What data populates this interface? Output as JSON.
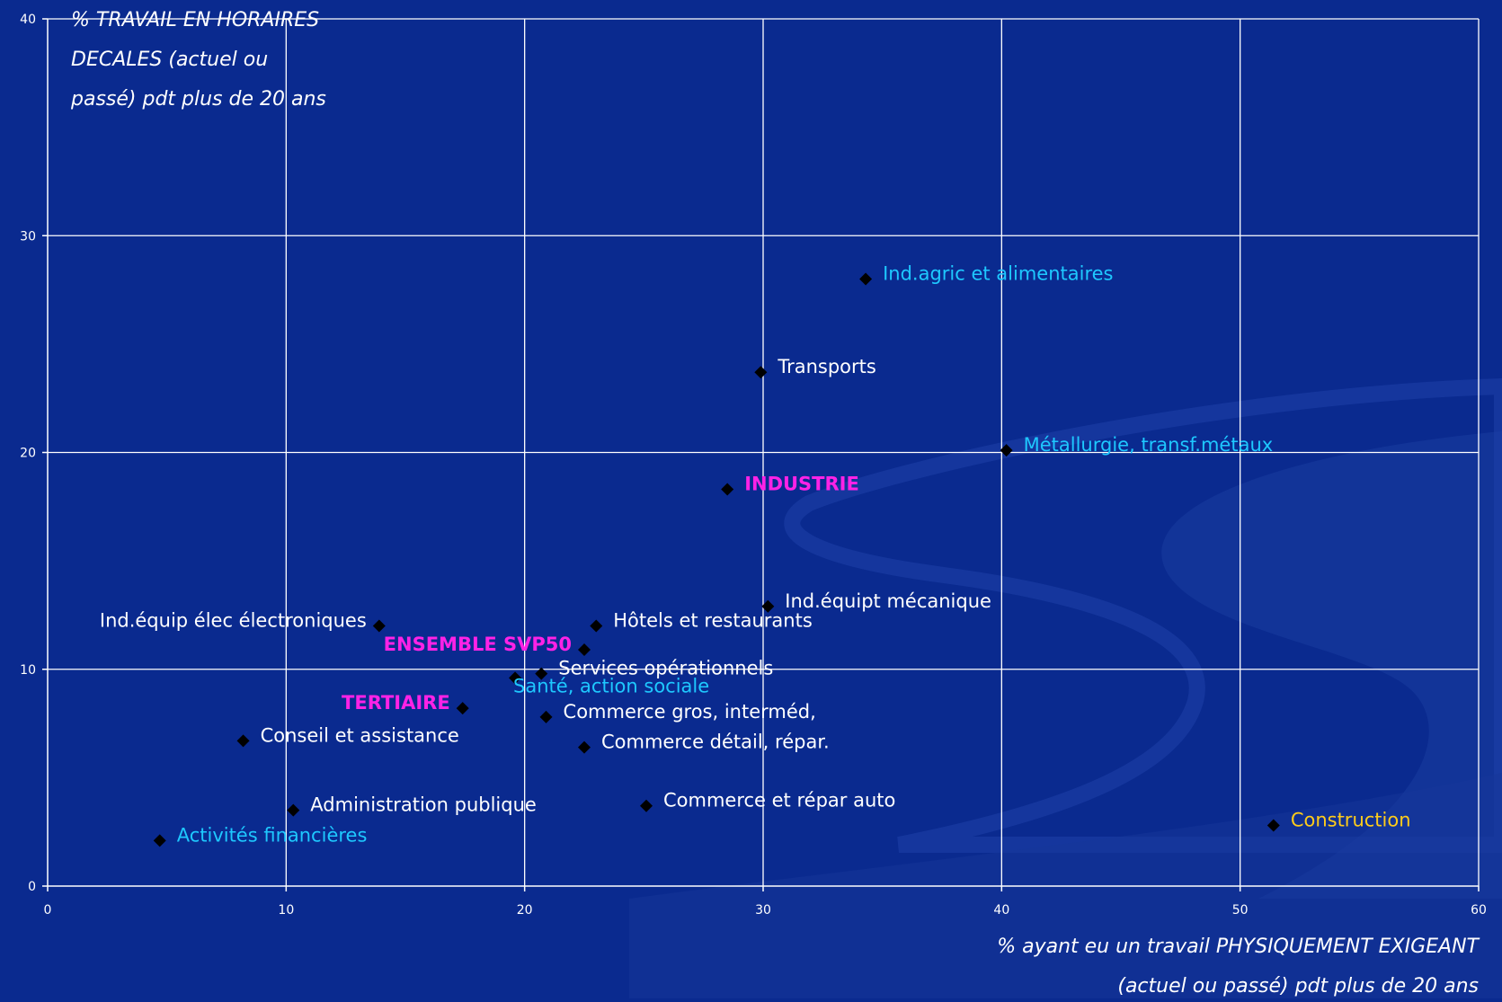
{
  "colors": {
    "background": "#0a2a8f",
    "grid": "#ffffff",
    "marker": "#000000",
    "label_white": "#ffffff",
    "label_cyan": "#1ec8ff",
    "label_magenta": "#ff22e6",
    "label_gold": "#ffcc1a"
  },
  "chart_data": {
    "type": "scatter",
    "title": "",
    "ylabel_lines": [
      "% TRAVAIL EN HORAIRES",
      "DECALES  (actuel ou",
      "passé) pdt plus de 20 ans"
    ],
    "xlabel_lines": [
      "%  ayant eu un travail PHYSIQUEMENT EXIGEANT",
      "(actuel ou passé) pdt plus de 20 ans"
    ],
    "xlim": [
      0,
      60
    ],
    "ylim": [
      0,
      40
    ],
    "xticks": [
      0,
      10,
      20,
      30,
      40,
      50,
      60
    ],
    "yticks": [
      0,
      10,
      20,
      30,
      40
    ],
    "grid": true,
    "marker": "diamond",
    "points": [
      {
        "label": "Ind.agric et alimentaires",
        "x": 34.3,
        "y": 28.0,
        "color": "cyan",
        "anchor": "right"
      },
      {
        "label": "Transports",
        "x": 29.9,
        "y": 23.7,
        "color": "white",
        "anchor": "right"
      },
      {
        "label": "Métallurgie, transf.métaux",
        "x": 40.2,
        "y": 20.1,
        "color": "cyan",
        "anchor": "right"
      },
      {
        "label": "INDUSTRIE",
        "x": 28.5,
        "y": 18.3,
        "color": "magenta",
        "anchor": "right"
      },
      {
        "label": "Ind.équipt mécanique",
        "x": 30.2,
        "y": 12.9,
        "color": "white",
        "anchor": "right"
      },
      {
        "label": "Ind.équip élec électroniques",
        "x": 13.9,
        "y": 12.0,
        "color": "white",
        "anchor": "left"
      },
      {
        "label": "Hôtels et restaurants",
        "x": 23.0,
        "y": 12.0,
        "color": "white",
        "anchor": "right"
      },
      {
        "label": "ENSEMBLE SVP50",
        "x": 22.5,
        "y": 10.9,
        "color": "magenta",
        "anchor": "left"
      },
      {
        "label": "Services opérationnels",
        "x": 20.7,
        "y": 9.8,
        "color": "white",
        "anchor": "right"
      },
      {
        "label": "Santé, action sociale",
        "x": 19.6,
        "y": 9.6,
        "color": "cyan",
        "anchor": "below"
      },
      {
        "label": "TERTIAIRE",
        "x": 17.4,
        "y": 8.2,
        "color": "magenta",
        "anchor": "left"
      },
      {
        "label": "Commerce gros, interméd,",
        "x": 20.9,
        "y": 7.8,
        "color": "white",
        "anchor": "right"
      },
      {
        "label": "Conseil et assistance",
        "x": 8.2,
        "y": 6.7,
        "color": "white",
        "anchor": "right"
      },
      {
        "label": "Commerce détail, répar.",
        "x": 22.5,
        "y": 6.4,
        "color": "white",
        "anchor": "right"
      },
      {
        "label": "Administration publique",
        "x": 10.3,
        "y": 3.5,
        "color": "white",
        "anchor": "right"
      },
      {
        "label": "Commerce et répar auto",
        "x": 25.1,
        "y": 3.7,
        "color": "white",
        "anchor": "right"
      },
      {
        "label": "Construction",
        "x": 51.4,
        "y": 2.8,
        "color": "gold",
        "anchor": "right"
      },
      {
        "label": "Activités financières",
        "x": 4.7,
        "y": 2.1,
        "color": "cyan",
        "anchor": "right"
      }
    ]
  }
}
